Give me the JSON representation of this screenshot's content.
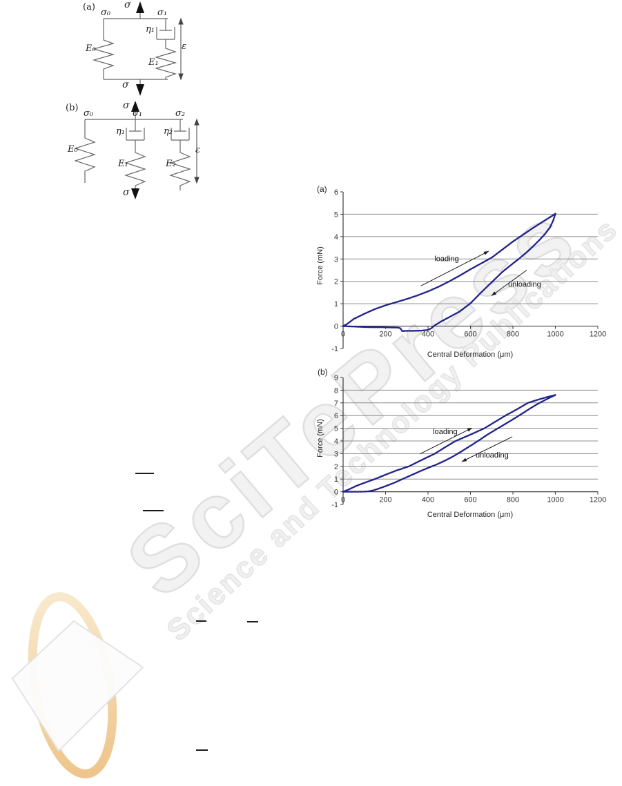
{
  "watermark": {
    "brand": "SciTePress",
    "tagline": "Science and Technology Publications",
    "ring_color": "#eec98f",
    "diamond_color": "#fcfcfc",
    "text_color": "#f0f0f0"
  },
  "diagrams": {
    "a": {
      "label": "(a)",
      "stress_top": "σ",
      "stress_bottom": "σ",
      "node_left": "σ₀",
      "node_right": "σ₁",
      "spring_left": "E₀",
      "damper": "η₁",
      "spring_right": "E₁",
      "strain": "ε"
    },
    "b": {
      "label": "(b)",
      "stress_top": "σ",
      "stress_bottom": "σ",
      "node_left": "σ₀",
      "node_mid": "σ₁",
      "node_right": "σ₂",
      "spring_left": "E₀",
      "damper_mid": "η₁",
      "spring_mid": "E₁",
      "damper_right": "η₂",
      "spring_right": "E₂",
      "strain": "ε"
    }
  },
  "chart_data": [
    {
      "id": "a",
      "type": "line",
      "label": "(a)",
      "title": "",
      "xlabel": "Central Deformation (μm)",
      "ylabel": "Force (mN)",
      "xlim": [
        0,
        1200
      ],
      "ylim": [
        -1,
        6
      ],
      "xticks": [
        0,
        200,
        400,
        600,
        800,
        1000,
        1200
      ],
      "yticks": [
        -1,
        0,
        1,
        2,
        3,
        4,
        5,
        6
      ],
      "grid": "horizontal-only",
      "legend": "none",
      "line_color": "#23238c",
      "series": [
        {
          "name": "loading",
          "points": [
            [
              0,
              0
            ],
            [
              20,
              0.1
            ],
            [
              50,
              0.32
            ],
            [
              100,
              0.55
            ],
            [
              150,
              0.76
            ],
            [
              200,
              0.93
            ],
            [
              250,
              1.07
            ],
            [
              300,
              1.21
            ],
            [
              350,
              1.37
            ],
            [
              400,
              1.55
            ],
            [
              450,
              1.76
            ],
            [
              500,
              2.0
            ],
            [
              550,
              2.26
            ],
            [
              600,
              2.54
            ],
            [
              650,
              2.8
            ],
            [
              700,
              3.06
            ],
            [
              750,
              3.42
            ],
            [
              800,
              3.78
            ],
            [
              850,
              4.1
            ],
            [
              900,
              4.42
            ],
            [
              950,
              4.72
            ],
            [
              1000,
              5.02
            ]
          ]
        },
        {
          "name": "unloading",
          "points": [
            [
              1000,
              5.02
            ],
            [
              990,
              4.72
            ],
            [
              975,
              4.42
            ],
            [
              950,
              4.1
            ],
            [
              920,
              3.8
            ],
            [
              890,
              3.52
            ],
            [
              860,
              3.26
            ],
            [
              830,
              3.02
            ],
            [
              800,
              2.8
            ],
            [
              750,
              2.42
            ],
            [
              700,
              1.96
            ],
            [
              650,
              1.5
            ],
            [
              600,
              1.02
            ],
            [
              550,
              0.66
            ],
            [
              500,
              0.4
            ],
            [
              460,
              0.2
            ],
            [
              430,
              0.02
            ],
            [
              415,
              -0.1
            ],
            [
              400,
              -0.17
            ],
            [
              370,
              -0.2
            ],
            [
              330,
              -0.21
            ],
            [
              300,
              -0.21
            ],
            [
              278,
              -0.22
            ],
            [
              270,
              -0.1
            ],
            [
              260,
              -0.07
            ],
            [
              220,
              -0.06
            ],
            [
              180,
              -0.05
            ],
            [
              140,
              -0.05
            ],
            [
              100,
              -0.04
            ],
            [
              50,
              -0.02
            ],
            [
              0,
              0
            ]
          ]
        }
      ],
      "annotations": [
        {
          "text": "loading",
          "x": 488,
          "y": 2.9,
          "arrow": [
            367,
            1.8,
            686,
            3.35
          ]
        },
        {
          "text": "unloading",
          "x": 855,
          "y": 1.76,
          "arrow": [
            865,
            2.5,
            699,
            1.36
          ]
        }
      ]
    },
    {
      "id": "b",
      "type": "line",
      "label": "(b)",
      "title": "",
      "xlabel": "Central Deformation (μm)",
      "ylabel": "Force (mN)",
      "xlim": [
        0,
        1200
      ],
      "ylim": [
        -1,
        9
      ],
      "xticks": [
        0,
        200,
        400,
        600,
        800,
        1000,
        1200
      ],
      "yticks": [
        -1,
        0,
        1,
        2,
        3,
        4,
        5,
        6,
        7,
        8,
        9
      ],
      "grid": "horizontal-only",
      "legend": "none",
      "line_color": "#23238c",
      "series": [
        {
          "name": "loading",
          "points": [
            [
              0,
              0
            ],
            [
              30,
              0.2
            ],
            [
              60,
              0.45
            ],
            [
              100,
              0.7
            ],
            [
              150,
              1.0
            ],
            [
              200,
              1.34
            ],
            [
              250,
              1.67
            ],
            [
              310,
              2.0
            ],
            [
              370,
              2.5
            ],
            [
              432,
              3.0
            ],
            [
              480,
              3.5
            ],
            [
              530,
              4.0
            ],
            [
              600,
              4.5
            ],
            [
              666,
              5.0
            ],
            [
              715,
              5.5
            ],
            [
              765,
              6.0
            ],
            [
              820,
              6.5
            ],
            [
              871,
              7.0
            ],
            [
              920,
              7.26
            ],
            [
              960,
              7.45
            ],
            [
              1000,
              7.62
            ]
          ]
        },
        {
          "name": "unloading",
          "points": [
            [
              1000,
              7.62
            ],
            [
              960,
              7.3
            ],
            [
              920,
              6.95
            ],
            [
              880,
              6.55
            ],
            [
              840,
              6.12
            ],
            [
              800,
              5.7
            ],
            [
              760,
              5.3
            ],
            [
              720,
              4.9
            ],
            [
              680,
              4.5
            ],
            [
              640,
              4.05
            ],
            [
              600,
              3.62
            ],
            [
              560,
              3.2
            ],
            [
              520,
              2.8
            ],
            [
              480,
              2.45
            ],
            [
              440,
              2.14
            ],
            [
              400,
              1.88
            ],
            [
              360,
              1.6
            ],
            [
              320,
              1.3
            ],
            [
              280,
              1.0
            ],
            [
              240,
              0.7
            ],
            [
              200,
              0.44
            ],
            [
              160,
              0.2
            ],
            [
              140,
              0.1
            ],
            [
              120,
              0.04
            ],
            [
              100,
              0.01
            ],
            [
              60,
              0
            ],
            [
              0,
              0
            ]
          ]
        }
      ],
      "annotations": [
        {
          "text": "loading",
          "x": 481,
          "y": 4.55,
          "arrow": [
            361,
            2.97,
            608,
            5.03
          ]
        },
        {
          "text": "unloading",
          "x": 702,
          "y": 2.7,
          "arrow": [
            797,
            4.33,
            559,
            2.37
          ]
        }
      ]
    }
  ]
}
